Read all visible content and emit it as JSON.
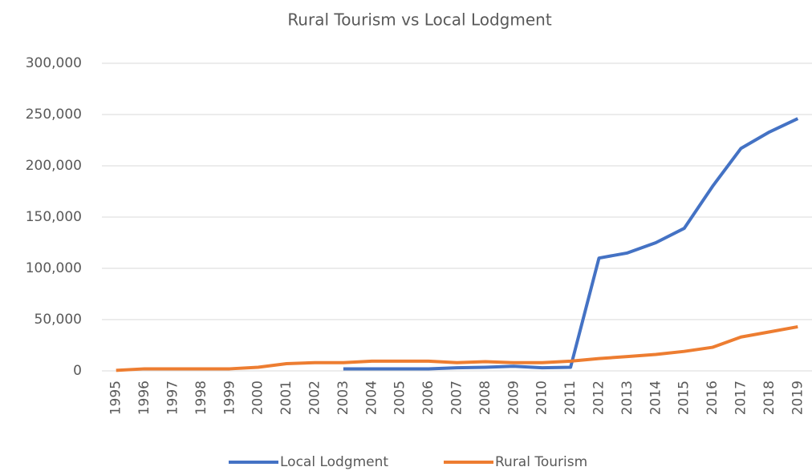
{
  "chart_data": {
    "type": "line",
    "title": "Rural Tourism vs Local Lodgment",
    "categories": [
      "1995",
      "1996",
      "1997",
      "1998",
      "1999",
      "2000",
      "2001",
      "2002",
      "2003",
      "2004",
      "2005",
      "2006",
      "2007",
      "2008",
      "2009",
      "2010",
      "2011",
      "2012",
      "2013",
      "2014",
      "2015",
      "2016",
      "2017",
      "2018",
      "2019"
    ],
    "series": [
      {
        "name": "Local Lodgment",
        "color": "#4472c4",
        "values": [
          null,
          null,
          null,
          null,
          null,
          null,
          null,
          null,
          2000,
          2000,
          2000,
          2000,
          3000,
          3500,
          4500,
          3000,
          3500,
          110000,
          115000,
          125000,
          139000,
          180000,
          217000,
          233000,
          246000
        ]
      },
      {
        "name": "Rural Tourism",
        "color": "#ed7d31",
        "values": [
          500,
          2000,
          2000,
          2000,
          2000,
          3500,
          7000,
          8000,
          8000,
          9500,
          9500,
          9500,
          8000,
          9000,
          8000,
          8000,
          9500,
          12000,
          14000,
          16000,
          19000,
          23000,
          33000,
          38000,
          43000
        ]
      }
    ],
    "ylim": [
      0,
      300000
    ],
    "yticks": [
      0,
      {
        "value": 50000,
        "label": "50,000"
      },
      {
        "value": 100000,
        "label": "100,000"
      },
      {
        "value": 150000,
        "label": "150,000"
      },
      {
        "value": 200000,
        "label": "200,000"
      },
      {
        "value": 250000,
        "label": "250,000"
      },
      {
        "value": 300000,
        "label": "300,000"
      }
    ],
    "grid": true,
    "legend": "bottom"
  }
}
